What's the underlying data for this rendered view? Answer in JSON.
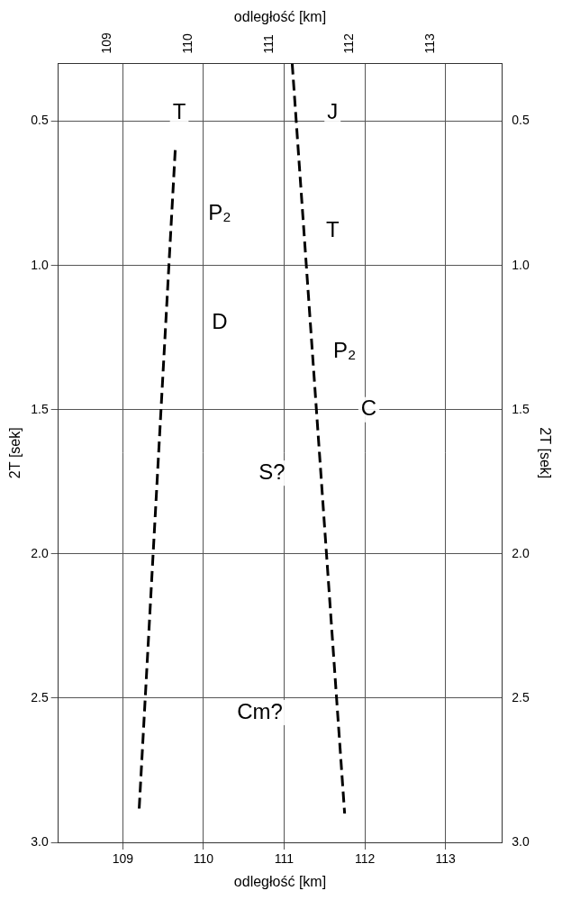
{
  "chart_data": {
    "type": "line",
    "x_label": "odległość [km]",
    "y_label": "2T [sek]",
    "xlim": [
      108.2,
      113.7
    ],
    "xticks": [
      109,
      110,
      111,
      112,
      113
    ],
    "ylim": [
      0.3,
      3.0
    ],
    "yticks": [
      0.5,
      {
        "value": 1,
        "label": "1.0"
      },
      1.5,
      {
        "value": 2,
        "label": "2.0"
      },
      2.5,
      {
        "value": 3,
        "label": "3.0"
      }
    ],
    "grid": true,
    "series": [
      {
        "color": "#000000",
        "line_style": "dashed",
        "x": [
          109.65,
          109.2
        ],
        "values": [
          0.6,
          2.9
        ]
      },
      {
        "color": "#000000",
        "line_style": "dashed",
        "x": [
          111.1,
          111.75
        ],
        "values": [
          0.3,
          2.9
        ]
      }
    ],
    "annotations": [
      {
        "text": "T",
        "x": 109.7,
        "y": 0.47
      },
      {
        "text": "J",
        "x": 111.6,
        "y": 0.47
      },
      {
        "text": "P₂",
        "x": 110.2,
        "y": 0.82
      },
      {
        "text": "T",
        "x": 111.6,
        "y": 0.88
      },
      {
        "text": "D",
        "x": 110.2,
        "y": 1.2
      },
      {
        "text": "P₂",
        "x": 111.75,
        "y": 1.3
      },
      {
        "text": "C",
        "x": 112.05,
        "y": 1.5
      },
      {
        "text": "S?",
        "x": 110.85,
        "y": 1.72
      },
      {
        "text": "Cm?",
        "x": 110.7,
        "y": 2.55
      }
    ]
  }
}
